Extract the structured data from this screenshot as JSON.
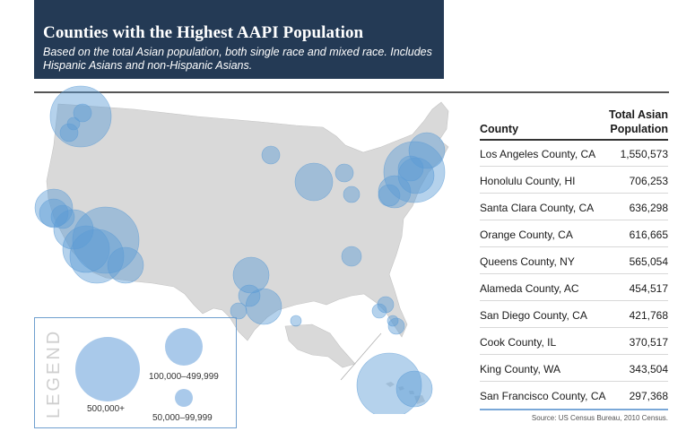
{
  "header": {
    "title": "Counties with the Highest AAPI Population",
    "subtitle": "Based on the total Asian population, both single race and mixed race. Includes Hispanic Asians and non-Hispanic Asians."
  },
  "legend": {
    "word": "LEGEND",
    "large_label": "500,000+",
    "medium_label": "100,000–499,999",
    "small_label": "50,000–99,999"
  },
  "table": {
    "col_county": "County",
    "col_pop_line1": "Total Asian",
    "col_pop_line2": "Population",
    "rows": [
      {
        "county": "Los Angeles County, CA",
        "pop": "1,550,573"
      },
      {
        "county": "Honolulu County, HI",
        "pop": "706,253"
      },
      {
        "county": "Santa Clara County, CA",
        "pop": "636,298"
      },
      {
        "county": "Orange County, CA",
        "pop": "616,665"
      },
      {
        "county": "Queens County, NY",
        "pop": "565,054"
      },
      {
        "county": "Alameda County, AC",
        "pop": "454,517"
      },
      {
        "county": "San Diego County, CA",
        "pop": "421,768"
      },
      {
        "county": "Cook County, IL",
        "pop": "370,517"
      },
      {
        "county": "King County, WA",
        "pop": "343,504"
      },
      {
        "county": "San Francisco County, CA",
        "pop": "297,368"
      }
    ]
  },
  "source": "Source: US Census Bureau, 2010 Census.",
  "colors": {
    "header_bg": "#243a55",
    "bubble": "#5b9bd5",
    "land": "#d9d9d9"
  }
}
